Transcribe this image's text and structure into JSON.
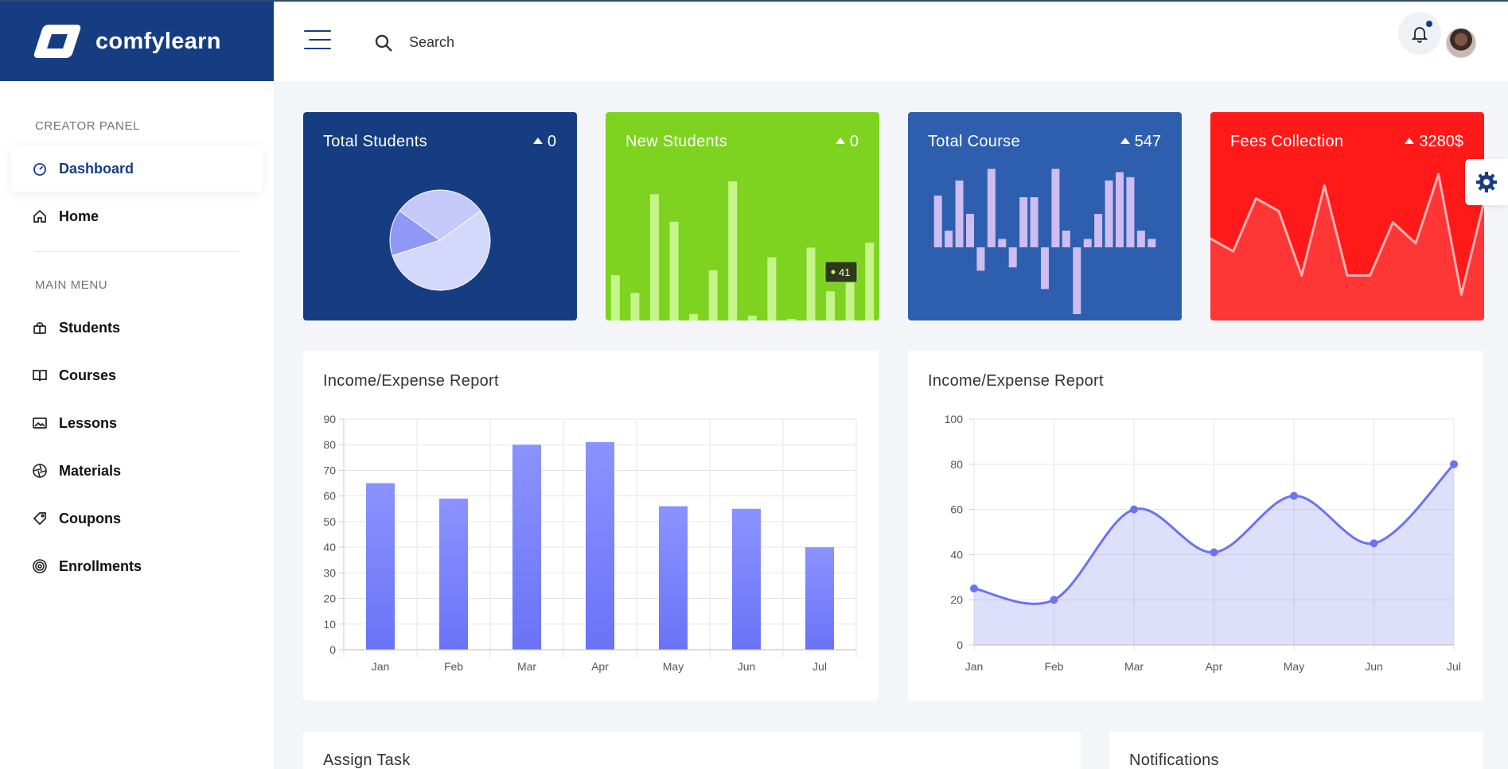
{
  "brand": {
    "name": "comfylearn"
  },
  "search": {
    "placeholder": "Search"
  },
  "sidebar": {
    "creator_label": "CREATOR PANEL",
    "main_label": "MAIN MENU",
    "items": [
      {
        "label": "Dashboard",
        "icon": "dashboard-icon",
        "active": true
      },
      {
        "label": "Home",
        "icon": "home-icon"
      },
      {
        "label": "Students",
        "icon": "students-icon"
      },
      {
        "label": "Courses",
        "icon": "book-icon"
      },
      {
        "label": "Lessons",
        "icon": "image-icon"
      },
      {
        "label": "Materials",
        "icon": "aperture-icon"
      },
      {
        "label": "Coupons",
        "icon": "tag-icon"
      },
      {
        "label": "Enrollments",
        "icon": "target-icon"
      }
    ]
  },
  "stats": [
    {
      "title": "Total Students",
      "value": "0",
      "color": "#163d82"
    },
    {
      "title": "New Students",
      "value": "0",
      "color": "#7ed321"
    },
    {
      "title": "Total Course",
      "value": "547",
      "color": "#2e5fae"
    },
    {
      "title": "Fees Collection",
      "value": "3280$",
      "color": "#ff1a1a"
    }
  ],
  "new_students_tooltip": "41",
  "panels": {
    "bar_title": "Income/Expense Report",
    "line_title": "Income/Expense Report",
    "assign_title": "Assign Task",
    "notif_title": "Notifications"
  },
  "chart_data": [
    {
      "type": "pie",
      "values": [
        55,
        15,
        30
      ],
      "colors": [
        "#d4d8fb",
        "#8f99f5",
        "#c4c9fa"
      ]
    },
    {
      "type": "bar",
      "values": [
        28,
        17,
        78,
        61,
        4,
        31,
        86,
        3,
        39,
        1,
        45,
        18,
        30,
        48
      ],
      "color": "#c5f58a",
      "tooltip_value": 41
    },
    {
      "type": "bar",
      "baseline": "zero",
      "values": [
        31,
        10,
        40,
        20,
        -14,
        47,
        5,
        -12,
        30,
        30,
        -25,
        47,
        10,
        -40,
        5,
        20,
        40,
        45,
        42,
        10,
        5
      ],
      "color": "#cdbdf3"
    },
    {
      "type": "line",
      "values": [
        55,
        47,
        80,
        72,
        32,
        88,
        32,
        32,
        65,
        52,
        95,
        20,
        78
      ],
      "color": "#ffb3b3"
    },
    {
      "type": "bar",
      "title": "Income/Expense Report",
      "categories": [
        "Jan",
        "Feb",
        "Mar",
        "Apr",
        "May",
        "Jun",
        "Jul"
      ],
      "values": [
        65,
        59,
        80,
        81,
        56,
        55,
        40
      ],
      "ylim": [
        0,
        90
      ],
      "yticks": [
        0,
        10,
        20,
        30,
        40,
        50,
        60,
        70,
        80,
        90
      ],
      "color": "#7a84ff",
      "grid": true
    },
    {
      "type": "area",
      "title": "Income/Expense Report",
      "categories": [
        "Jan",
        "Feb",
        "Mar",
        "Apr",
        "May",
        "Jun",
        "Jul"
      ],
      "values": [
        25,
        20,
        60,
        41,
        66,
        45,
        80
      ],
      "ylim": [
        0,
        100
      ],
      "yticks": [
        0,
        20,
        40,
        60,
        80,
        100
      ],
      "color": "#6b73ee",
      "grid": true
    }
  ]
}
